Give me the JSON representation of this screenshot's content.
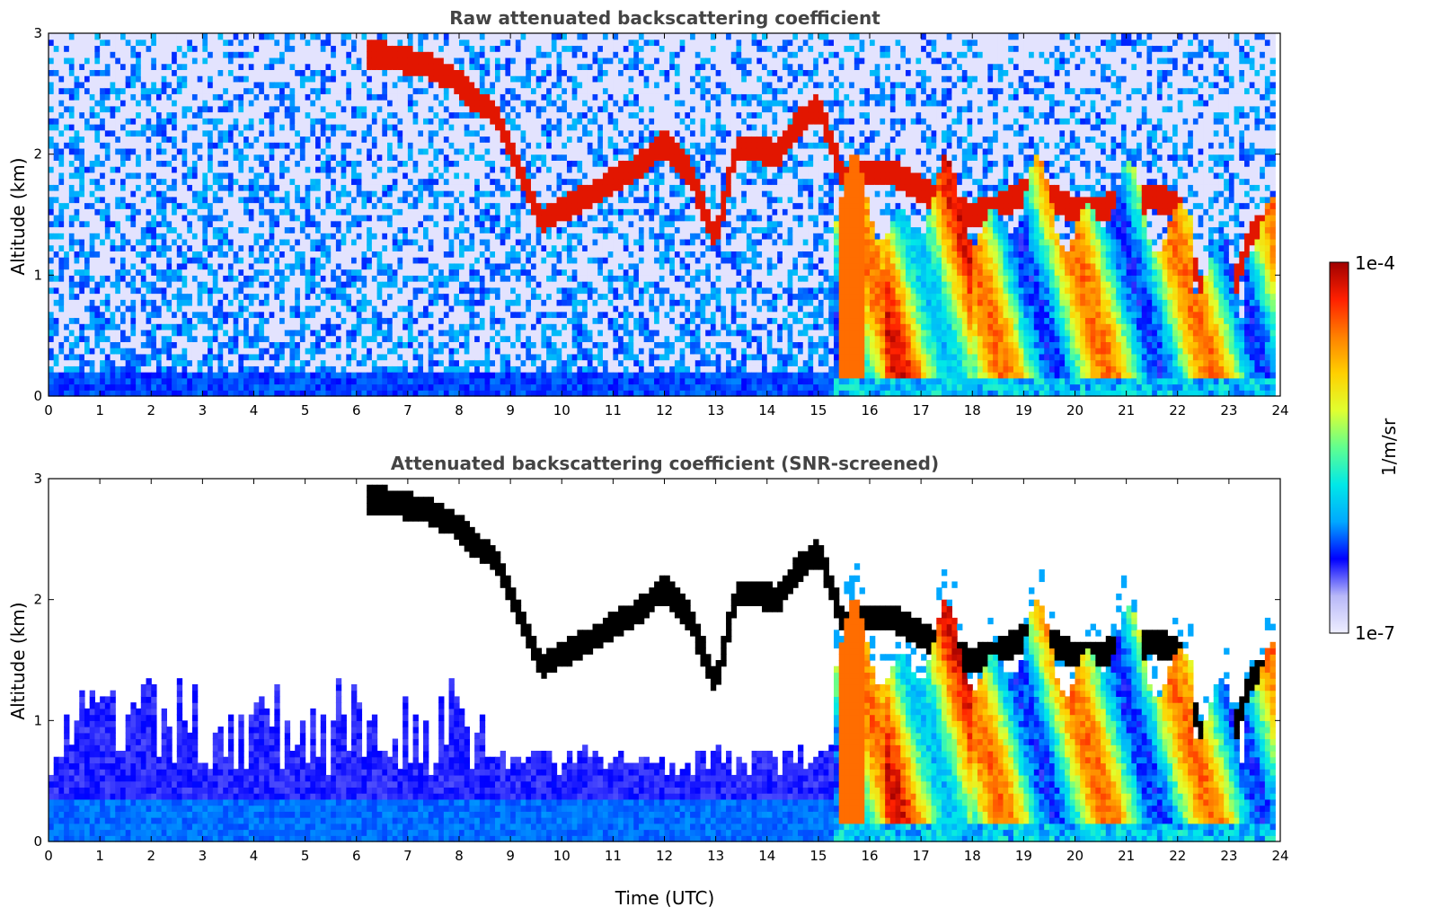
{
  "colors": {
    "colormap": [
      "#eeeeff",
      "#b8b8f8",
      "#0000ff",
      "#00a8ff",
      "#00e8e8",
      "#60ff90",
      "#e0ff30",
      "#ffd000",
      "#ff8000",
      "#ff2000",
      "#a00000"
    ],
    "saturated": "#000000",
    "title": "#444444"
  },
  "colorbar": {
    "label": "1/m/sr",
    "max_label": "1e-4",
    "min_label": "1e-7",
    "scale": "log"
  },
  "chart_data": [
    {
      "type": "heatmap",
      "title": "Raw attenuated backscattering coefficient",
      "xlabel": "",
      "ylabel": "Altitude (km)",
      "xlim": [
        0,
        24
      ],
      "ylim": [
        0,
        3
      ],
      "xticks": [
        "0",
        "1",
        "2",
        "3",
        "4",
        "5",
        "6",
        "7",
        "8",
        "9",
        "10",
        "11",
        "12",
        "13",
        "14",
        "15",
        "16",
        "17",
        "18",
        "19",
        "20",
        "21",
        "22",
        "23",
        "24"
      ],
      "yticks": [
        "0",
        "1",
        "2",
        "3"
      ],
      "cloud_layer_km": [
        [
          6.2,
          2.82
        ],
        [
          6.6,
          2.82
        ],
        [
          7.0,
          2.78
        ],
        [
          7.5,
          2.72
        ],
        [
          8.0,
          2.6
        ],
        [
          8.3,
          2.45
        ],
        [
          8.7,
          2.35
        ],
        [
          9.6,
          1.45
        ],
        [
          10.0,
          1.55
        ],
        [
          10.5,
          1.65
        ],
        [
          11.0,
          1.78
        ],
        [
          11.5,
          1.9
        ],
        [
          12.0,
          2.1
        ],
        [
          12.5,
          1.85
        ],
        [
          13.0,
          1.3
        ],
        [
          13.4,
          2.05
        ],
        [
          13.8,
          2.05
        ],
        [
          14.2,
          2.0
        ],
        [
          14.6,
          2.25
        ],
        [
          15.0,
          2.4
        ],
        [
          15.5,
          1.8
        ],
        [
          16.0,
          1.85
        ],
        [
          16.5,
          1.85
        ],
        [
          17.0,
          1.7
        ],
        [
          17.5,
          1.6
        ],
        [
          18.0,
          1.5
        ],
        [
          18.5,
          1.55
        ],
        [
          19.0,
          1.7
        ],
        [
          19.5,
          1.65
        ],
        [
          20.0,
          1.55
        ],
        [
          20.5,
          1.55
        ],
        [
          21.0,
          1.6
        ],
        [
          21.5,
          1.65
        ],
        [
          22.0,
          1.6
        ],
        [
          22.5,
          0.8
        ],
        [
          23.0,
          0.8
        ],
        [
          23.5,
          1.4
        ],
        [
          23.8,
          1.35
        ]
      ]
    },
    {
      "type": "heatmap",
      "title": "Attenuated backscattering coefficient (SNR-screened)",
      "xlabel": "Time (UTC)",
      "ylabel": "Altitude (km)",
      "xlim": [
        0,
        24
      ],
      "ylim": [
        0,
        3
      ],
      "xticks": [
        "0",
        "1",
        "2",
        "3",
        "4",
        "5",
        "6",
        "7",
        "8",
        "9",
        "10",
        "11",
        "12",
        "13",
        "14",
        "15",
        "16",
        "17",
        "18",
        "19",
        "20",
        "21",
        "22",
        "23",
        "24"
      ],
      "yticks": [
        "0",
        "1",
        "2",
        "3"
      ],
      "cloud_layer_km": [
        [
          6.2,
          2.82
        ],
        [
          6.6,
          2.82
        ],
        [
          7.0,
          2.78
        ],
        [
          7.5,
          2.72
        ],
        [
          8.0,
          2.6
        ],
        [
          8.3,
          2.45
        ],
        [
          8.7,
          2.35
        ],
        [
          9.6,
          1.45
        ],
        [
          10.0,
          1.55
        ],
        [
          10.5,
          1.65
        ],
        [
          11.0,
          1.78
        ],
        [
          11.5,
          1.9
        ],
        [
          12.0,
          2.1
        ],
        [
          12.5,
          1.85
        ],
        [
          13.0,
          1.3
        ],
        [
          13.4,
          2.05
        ],
        [
          13.8,
          2.05
        ],
        [
          14.2,
          2.0
        ],
        [
          14.6,
          2.25
        ],
        [
          15.0,
          2.4
        ],
        [
          15.5,
          1.8
        ],
        [
          16.0,
          1.85
        ],
        [
          16.5,
          1.85
        ],
        [
          17.0,
          1.7
        ],
        [
          17.5,
          1.6
        ],
        [
          18.0,
          1.5
        ],
        [
          18.5,
          1.55
        ],
        [
          19.0,
          1.7
        ],
        [
          19.5,
          1.65
        ],
        [
          20.0,
          1.55
        ],
        [
          20.5,
          1.55
        ],
        [
          21.0,
          1.6
        ],
        [
          21.5,
          1.65
        ],
        [
          22.0,
          1.6
        ],
        [
          22.5,
          0.8
        ],
        [
          23.0,
          0.8
        ],
        [
          23.5,
          1.4
        ],
        [
          23.8,
          1.35
        ]
      ]
    }
  ]
}
